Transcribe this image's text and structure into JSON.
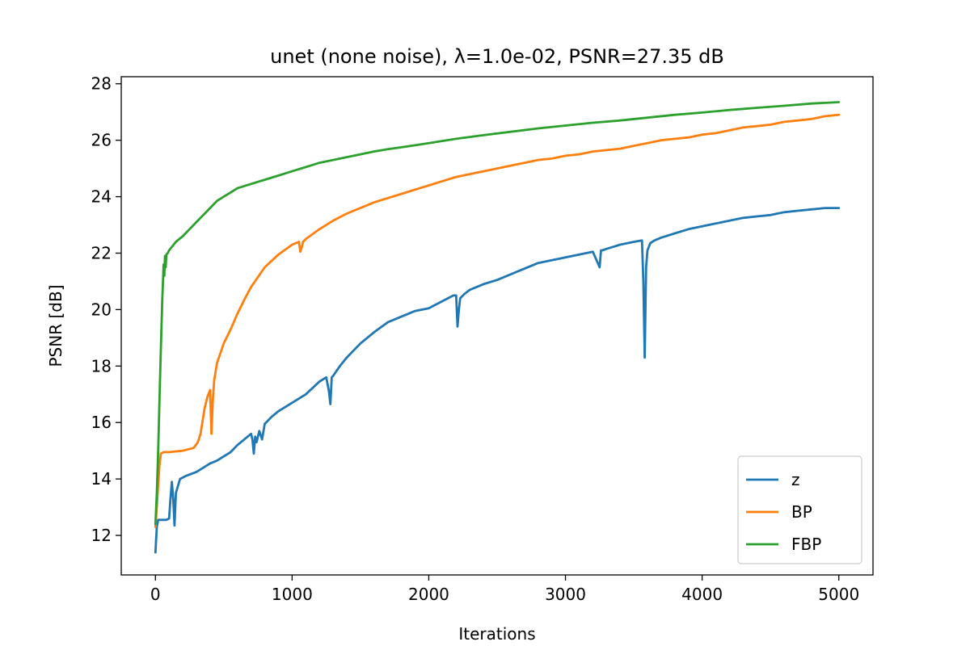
{
  "chart_data": {
    "type": "line",
    "title": "unet (none noise), λ=1.0e-02, PSNR=27.35 dB",
    "xlabel": "Iterations",
    "ylabel": "PSNR [dB]",
    "xlim": [
      -250,
      5250
    ],
    "ylim": [
      10.6,
      28.25
    ],
    "xticks": [
      0,
      1000,
      2000,
      3000,
      4000,
      5000
    ],
    "yticks": [
      12,
      14,
      16,
      18,
      20,
      22,
      24,
      26,
      28
    ],
    "grid": false,
    "legend_position": "lower-right",
    "series": [
      {
        "name": "z",
        "color": "#1f77b4",
        "x": [
          0,
          10,
          20,
          30,
          50,
          80,
          100,
          110,
          120,
          130,
          140,
          150,
          180,
          220,
          300,
          350,
          400,
          450,
          500,
          550,
          600,
          650,
          700,
          710,
          720,
          730,
          740,
          760,
          780,
          800,
          850,
          900,
          1000,
          1100,
          1200,
          1250,
          1270,
          1280,
          1290,
          1300,
          1350,
          1400,
          1500,
          1600,
          1700,
          1800,
          1900,
          2000,
          2100,
          2180,
          2200,
          2210,
          2220,
          2230,
          2260,
          2300,
          2400,
          2500,
          2600,
          2700,
          2800,
          2900,
          3000,
          3100,
          3200,
          3250,
          3260,
          3270,
          3300,
          3400,
          3500,
          3560,
          3570,
          3580,
          3590,
          3600,
          3620,
          3650,
          3700,
          3800,
          3900,
          4000,
          4100,
          4200,
          4300,
          4400,
          4500,
          4600,
          4700,
          4800,
          4900,
          5000
        ],
        "values": [
          11.4,
          12.3,
          12.55,
          12.55,
          12.55,
          12.55,
          12.6,
          13.3,
          13.9,
          13.3,
          12.35,
          13.5,
          14.0,
          14.1,
          14.25,
          14.4,
          14.55,
          14.65,
          14.8,
          14.95,
          15.2,
          15.4,
          15.6,
          15.4,
          14.9,
          15.5,
          15.3,
          15.7,
          15.4,
          15.95,
          16.2,
          16.4,
          16.7,
          17.0,
          17.45,
          17.6,
          17.1,
          16.65,
          17.6,
          17.65,
          18.0,
          18.3,
          18.8,
          19.2,
          19.55,
          19.75,
          19.95,
          20.05,
          20.3,
          20.5,
          20.5,
          19.4,
          20.0,
          20.4,
          20.55,
          20.7,
          20.9,
          21.05,
          21.25,
          21.45,
          21.65,
          21.75,
          21.85,
          21.95,
          22.05,
          21.5,
          22.1,
          22.1,
          22.15,
          22.3,
          22.4,
          22.45,
          21.0,
          18.3,
          21.5,
          22.1,
          22.35,
          22.45,
          22.55,
          22.7,
          22.85,
          22.95,
          23.05,
          23.15,
          23.25,
          23.3,
          23.35,
          23.45,
          23.5,
          23.55,
          23.6,
          23.6
        ]
      },
      {
        "name": "BP",
        "color": "#ff7f0e",
        "x": [
          0,
          10,
          20,
          30,
          40,
          60,
          100,
          200,
          280,
          310,
          330,
          360,
          380,
          400,
          410,
          420,
          430,
          450,
          500,
          550,
          600,
          650,
          700,
          800,
          900,
          1000,
          1050,
          1060,
          1070,
          1080,
          1100,
          1200,
          1300,
          1400,
          1500,
          1600,
          1700,
          1800,
          1900,
          2000,
          2100,
          2200,
          2300,
          2400,
          2500,
          2600,
          2700,
          2800,
          2900,
          3000,
          3100,
          3200,
          3300,
          3400,
          3500,
          3600,
          3700,
          3800,
          3900,
          4000,
          4100,
          4200,
          4300,
          4400,
          4500,
          4600,
          4700,
          4800,
          4900,
          5000
        ],
        "values": [
          12.3,
          13.0,
          13.8,
          14.5,
          14.9,
          14.95,
          14.95,
          15.0,
          15.1,
          15.3,
          15.6,
          16.5,
          16.9,
          17.15,
          15.6,
          16.8,
          17.5,
          18.1,
          18.8,
          19.3,
          19.85,
          20.35,
          20.8,
          21.5,
          21.95,
          22.3,
          22.4,
          22.05,
          22.2,
          22.4,
          22.5,
          22.85,
          23.15,
          23.4,
          23.6,
          23.8,
          23.95,
          24.1,
          24.25,
          24.4,
          24.55,
          24.7,
          24.8,
          24.9,
          25.0,
          25.1,
          25.2,
          25.3,
          25.35,
          25.45,
          25.5,
          25.6,
          25.65,
          25.7,
          25.8,
          25.9,
          26.0,
          26.05,
          26.1,
          26.2,
          26.25,
          26.35,
          26.45,
          26.5,
          26.55,
          26.65,
          26.7,
          26.75,
          26.85,
          26.9
        ]
      },
      {
        "name": "FBP",
        "color": "#2ca02c",
        "x": [
          0,
          10,
          20,
          30,
          40,
          50,
          60,
          65,
          70,
          75,
          80,
          90,
          100,
          150,
          200,
          250,
          300,
          350,
          400,
          450,
          500,
          550,
          600,
          700,
          800,
          900,
          1000,
          1100,
          1200,
          1300,
          1400,
          1500,
          1600,
          1700,
          1800,
          1900,
          2000,
          2200,
          2400,
          2600,
          2800,
          3000,
          3200,
          3400,
          3600,
          3800,
          4000,
          4200,
          4400,
          4600,
          4800,
          5000
        ],
        "values": [
          12.4,
          13.5,
          15.0,
          16.8,
          18.6,
          20.3,
          21.6,
          21.2,
          21.9,
          21.5,
          21.95,
          22.0,
          22.1,
          22.4,
          22.6,
          22.85,
          23.1,
          23.35,
          23.6,
          23.85,
          24.0,
          24.15,
          24.3,
          24.45,
          24.6,
          24.75,
          24.9,
          25.05,
          25.2,
          25.3,
          25.4,
          25.5,
          25.6,
          25.68,
          25.75,
          25.82,
          25.9,
          26.05,
          26.18,
          26.3,
          26.42,
          26.52,
          26.62,
          26.7,
          26.8,
          26.9,
          26.98,
          27.07,
          27.15,
          27.22,
          27.3,
          27.35
        ]
      }
    ]
  }
}
